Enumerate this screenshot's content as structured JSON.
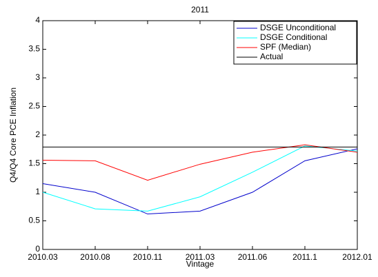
{
  "chart_data": {
    "type": "line",
    "title": "2011",
    "xlabel": "Vintage",
    "ylabel": "Q4/Q4 Core PCE Inflation",
    "categories": [
      "2010.03",
      "2010.08",
      "2010.11",
      "2011.03",
      "2011.06",
      "2011.1",
      "2012.01"
    ],
    "series": [
      {
        "name": "DSGE Unconditional",
        "color": "#0000cc",
        "values": [
          1.15,
          1.0,
          0.62,
          0.67,
          1.0,
          1.55,
          1.76
        ]
      },
      {
        "name": "DSGE Conditional",
        "color": "#00ffff",
        "values": [
          1.0,
          0.71,
          0.67,
          0.92,
          1.35,
          1.81,
          1.72
        ]
      },
      {
        "name": "SPF (Median)",
        "color": "#ff0000",
        "values": [
          1.56,
          1.55,
          1.21,
          1.49,
          1.7,
          1.83,
          1.7
        ]
      },
      {
        "name": "Actual",
        "color": "#000000",
        "values": [
          1.79,
          1.79,
          1.79,
          1.79,
          1.79,
          1.79,
          1.79
        ]
      }
    ],
    "ylim": [
      0,
      4
    ],
    "yticks": [
      0,
      0.5,
      1,
      1.5,
      2,
      2.5,
      3,
      3.5,
      4
    ],
    "legend": "upper right"
  }
}
